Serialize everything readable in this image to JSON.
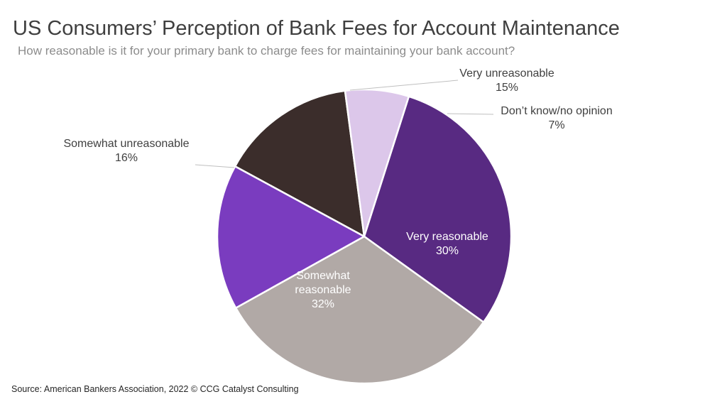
{
  "title": "US Consumers’ Perception of Bank Fees for Account Maintenance",
  "subtitle": "How reasonable is it for your primary bank to charge fees for maintaining your bank account?",
  "source": "Source: American Bankers Association, 2022 © CCG Catalyst Consulting",
  "chart_data": {
    "type": "pie",
    "slices": [
      {
        "label": "Very unreasonable",
        "pct_label": "15%",
        "value": 15,
        "color": "#3b2d2b"
      },
      {
        "label": "Don’t know/no opinion",
        "pct_label": "7%",
        "value": 7,
        "color": "#dcc7ea"
      },
      {
        "label": "Very reasonable",
        "pct_label": "30%",
        "value": 30,
        "color": "#582a82"
      },
      {
        "label": "Somewhat reasonable",
        "pct_label": "32%",
        "value": 32,
        "color": "#b1a9a6"
      },
      {
        "label": "Somewhat unreasonable",
        "pct_label": "16%",
        "value": 16,
        "color": "#7a3cbf"
      }
    ],
    "legend": "none",
    "label_position": "outside with leader lines for small slices, inside for large slices"
  }
}
